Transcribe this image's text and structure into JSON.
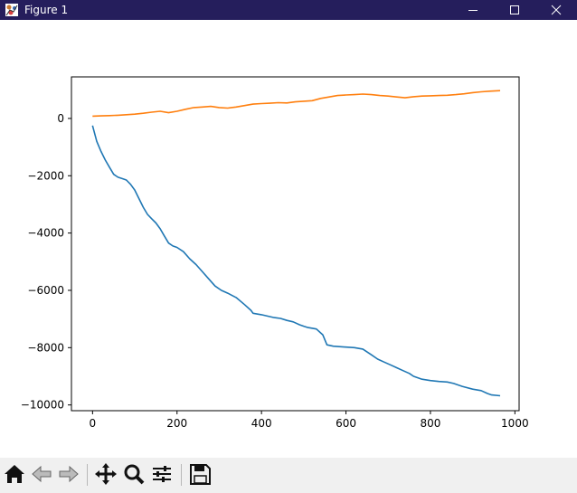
{
  "window": {
    "title": "Figure 1",
    "controls": [
      "minimize",
      "maximize",
      "close"
    ]
  },
  "toolbar": {
    "buttons": [
      {
        "name": "home",
        "icon": "home-icon"
      },
      {
        "name": "back",
        "icon": "arrow-left-icon"
      },
      {
        "name": "forward",
        "icon": "arrow-right-icon"
      },
      {
        "name": "pan",
        "icon": "move-icon"
      },
      {
        "name": "zoom",
        "icon": "magnifier-icon"
      },
      {
        "name": "configure-subplots",
        "icon": "sliders-icon"
      },
      {
        "name": "save",
        "icon": "floppy-disk-icon"
      }
    ]
  },
  "chart_data": {
    "type": "line",
    "title": "",
    "xlabel": "",
    "ylabel": "",
    "xlim": [
      -50,
      1010
    ],
    "ylim": [
      -10200,
      1450
    ],
    "xticks": [
      0,
      200,
      400,
      600,
      800,
      1000
    ],
    "yticks": [
      -10000,
      -8000,
      -6000,
      -4000,
      -2000,
      0
    ],
    "xtick_labels": [
      "0",
      "200",
      "400",
      "600",
      "800",
      "1000"
    ],
    "ytick_labels": [
      "−10000",
      "−8000",
      "−6000",
      "−4000",
      "−2000",
      "0"
    ],
    "grid": false,
    "legend": "none",
    "series": [
      {
        "color": "#1f77b4",
        "x": [
          0,
          10,
          20,
          30,
          40,
          50,
          60,
          70,
          80,
          90,
          100,
          110,
          120,
          130,
          140,
          150,
          160,
          170,
          180,
          190,
          200,
          215,
          230,
          245,
          260,
          275,
          290,
          305,
          320,
          340,
          360,
          375,
          380,
          400,
          415,
          430,
          445,
          460,
          475,
          490,
          500,
          510,
          530,
          545,
          555,
          570,
          600,
          620,
          640,
          660,
          675,
          690,
          705,
          720,
          735,
          750,
          760,
          780,
          800,
          820,
          840,
          855,
          875,
          900,
          920,
          935,
          945,
          965
        ],
        "y": [
          -250,
          -800,
          -1150,
          -1450,
          -1700,
          -1950,
          -2050,
          -2100,
          -2150,
          -2300,
          -2500,
          -2800,
          -3100,
          -3350,
          -3500,
          -3650,
          -3850,
          -4100,
          -4350,
          -4450,
          -4500,
          -4650,
          -4900,
          -5100,
          -5350,
          -5600,
          -5850,
          -6000,
          -6100,
          -6250,
          -6500,
          -6700,
          -6800,
          -6850,
          -6900,
          -6950,
          -6980,
          -7050,
          -7100,
          -7200,
          -7250,
          -7300,
          -7350,
          -7550,
          -7900,
          -7950,
          -7980,
          -8000,
          -8050,
          -8250,
          -8400,
          -8500,
          -8600,
          -8700,
          -8800,
          -8900,
          -9000,
          -9100,
          -9150,
          -9180,
          -9200,
          -9250,
          -9350,
          -9450,
          -9500,
          -9600,
          -9650,
          -9680
        ]
      },
      {
        "color": "#ff7f0e",
        "x": [
          0,
          20,
          40,
          60,
          80,
          100,
          120,
          140,
          160,
          180,
          200,
          220,
          240,
          260,
          280,
          300,
          320,
          340,
          360,
          380,
          400,
          420,
          440,
          460,
          480,
          500,
          520,
          540,
          560,
          580,
          600,
          620,
          640,
          660,
          680,
          700,
          720,
          740,
          760,
          780,
          800,
          820,
          840,
          860,
          880,
          900,
          920,
          940,
          965
        ],
        "y": [
          80,
          90,
          100,
          110,
          130,
          150,
          180,
          220,
          250,
          200,
          250,
          320,
          380,
          400,
          420,
          380,
          360,
          400,
          450,
          500,
          520,
          530,
          550,
          540,
          580,
          600,
          620,
          700,
          750,
          800,
          820,
          830,
          850,
          830,
          800,
          780,
          750,
          720,
          760,
          780,
          790,
          800,
          810,
          830,
          860,
          900,
          930,
          950,
          970
        ]
      }
    ]
  }
}
